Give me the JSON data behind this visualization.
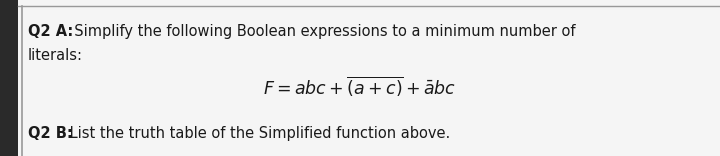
{
  "background_color": "#c8c8c8",
  "box_color": "#f5f5f5",
  "border_color": "#999999",
  "text_color": "#1a1a1a",
  "left_bar_color": "#2a2a2a",
  "q2a_bold": "Q2 A:",
  "q2a_normal": "  Simplify the following Boolean expressions to a minimum number of",
  "line2": "literals:",
  "formula": "$\\mathit{F} = \\mathit{abc} + \\overline{(\\mathit{a}+\\mathit{c})} + \\bar{\\mathit{a}}\\mathit{bc}$",
  "q2b_bold": "Q2 B:",
  "q2b_normal": " List the truth table of the Simplified function above.",
  "font_size_main": 10.5,
  "font_size_formula": 12.5
}
